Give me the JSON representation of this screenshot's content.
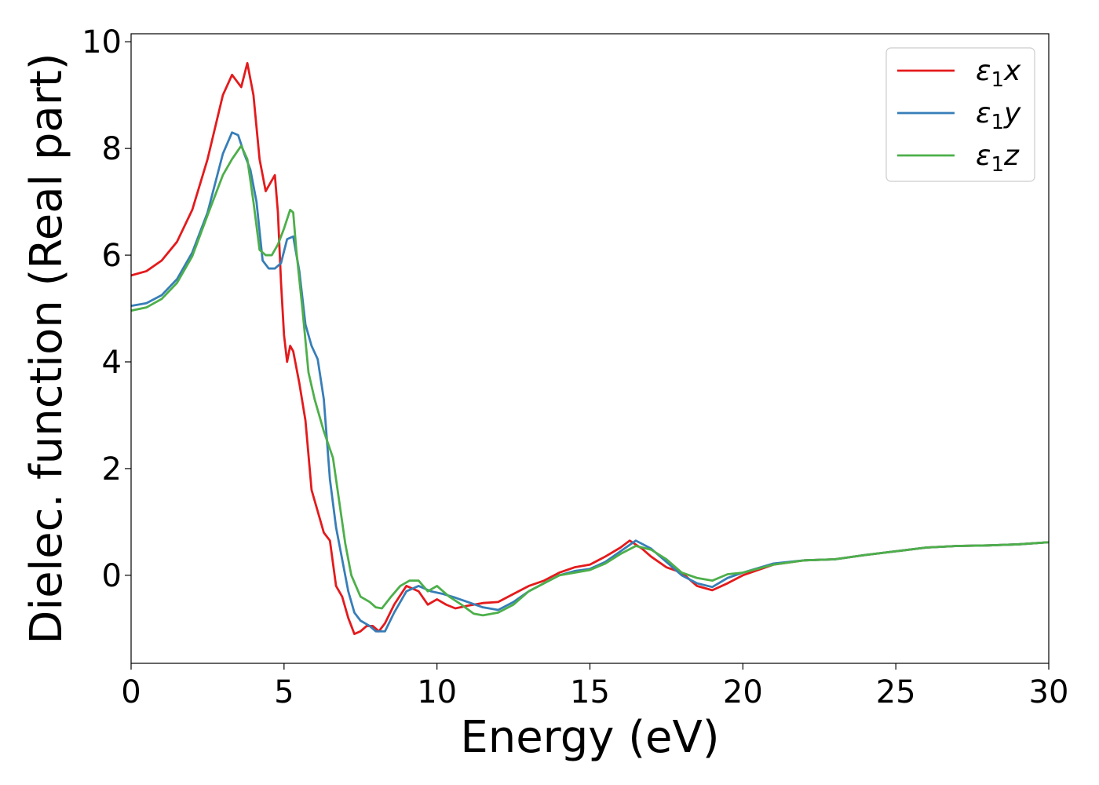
{
  "chart_data": {
    "type": "line",
    "title": "",
    "xlabel": "Energy (eV)",
    "ylabel": "Dielec. function (Real part)",
    "xlim": [
      0,
      30
    ],
    "ylim": [
      -1.65,
      10.15
    ],
    "xticks": [
      0,
      5,
      10,
      15,
      20,
      25,
      30
    ],
    "yticks": [
      0,
      2,
      4,
      6,
      8,
      10
    ],
    "grid": false,
    "legend_position": "top-right",
    "series": [
      {
        "name": "ε₁x",
        "legend_base": "ε",
        "legend_sub": "1",
        "legend_suffix": "x",
        "color": "#e41a1c",
        "x": [
          0,
          0.5,
          1,
          1.5,
          2,
          2.5,
          3,
          3.3,
          3.6,
          3.8,
          4,
          4.2,
          4.4,
          4.5,
          4.7,
          4.8,
          4.9,
          5,
          5.1,
          5.2,
          5.3,
          5.5,
          5.7,
          5.9,
          6.1,
          6.3,
          6.5,
          6.7,
          6.9,
          7.1,
          7.3,
          7.5,
          7.7,
          7.9,
          8.1,
          8.3,
          8.6,
          9,
          9.4,
          9.7,
          10,
          10.3,
          10.6,
          11,
          11.5,
          12,
          12.5,
          13,
          13.5,
          14,
          14.5,
          15,
          15.5,
          16,
          16.3,
          16.7,
          17,
          17.5,
          18,
          18.5,
          19,
          19.5,
          20,
          21,
          22,
          23,
          24,
          25,
          26,
          27,
          28,
          29,
          30
        ],
        "y": [
          5.62,
          5.7,
          5.9,
          6.25,
          6.85,
          7.8,
          9.0,
          9.38,
          9.15,
          9.6,
          9.0,
          7.8,
          7.2,
          7.3,
          7.5,
          6.8,
          5.5,
          4.5,
          4.0,
          4.3,
          4.2,
          3.6,
          2.9,
          1.6,
          1.2,
          0.8,
          0.65,
          -0.2,
          -0.4,
          -0.8,
          -1.1,
          -1.05,
          -0.95,
          -0.95,
          -1.05,
          -0.9,
          -0.55,
          -0.2,
          -0.3,
          -0.55,
          -0.45,
          -0.55,
          -0.62,
          -0.57,
          -0.52,
          -0.5,
          -0.35,
          -0.2,
          -0.1,
          0.05,
          0.15,
          0.2,
          0.35,
          0.52,
          0.65,
          0.5,
          0.35,
          0.15,
          0.05,
          -0.2,
          -0.28,
          -0.15,
          0.0,
          0.2,
          0.28,
          0.3,
          0.38,
          0.45,
          0.52,
          0.55,
          0.56,
          0.58,
          0.62
        ]
      },
      {
        "name": "ε₁y",
        "legend_base": "ε",
        "legend_sub": "1",
        "legend_suffix": "y",
        "color": "#377eb8",
        "x": [
          0,
          0.5,
          1,
          1.5,
          2,
          2.5,
          3,
          3.3,
          3.5,
          3.7,
          3.9,
          4.1,
          4.3,
          4.5,
          4.7,
          4.9,
          5.1,
          5.3,
          5.5,
          5.7,
          5.9,
          6.1,
          6.3,
          6.5,
          6.7,
          6.9,
          7.1,
          7.3,
          7.5,
          7.8,
          8.0,
          8.3,
          8.6,
          9,
          9.4,
          9.8,
          10.2,
          10.6,
          11,
          11.5,
          12,
          12.5,
          13,
          13.5,
          14,
          14.5,
          15,
          15.5,
          16,
          16.5,
          17,
          17.5,
          18,
          18.5,
          19,
          19.5,
          20,
          21,
          22,
          23,
          24,
          25,
          26,
          27,
          28,
          29,
          30
        ],
        "y": [
          5.05,
          5.1,
          5.25,
          5.55,
          6.05,
          6.8,
          7.9,
          8.3,
          8.25,
          7.9,
          7.6,
          7.0,
          5.9,
          5.75,
          5.75,
          5.85,
          6.3,
          6.35,
          5.7,
          4.7,
          4.3,
          4.05,
          3.3,
          1.8,
          0.9,
          0.3,
          -0.3,
          -0.7,
          -0.85,
          -0.95,
          -1.05,
          -1.05,
          -0.7,
          -0.3,
          -0.2,
          -0.3,
          -0.35,
          -0.42,
          -0.5,
          -0.6,
          -0.65,
          -0.5,
          -0.3,
          -0.15,
          0.0,
          0.08,
          0.12,
          0.25,
          0.45,
          0.65,
          0.5,
          0.25,
          0.0,
          -0.15,
          -0.22,
          -0.05,
          0.05,
          0.22,
          0.28,
          0.3,
          0.38,
          0.45,
          0.52,
          0.55,
          0.56,
          0.58,
          0.62
        ]
      },
      {
        "name": "ε₁z",
        "legend_base": "ε",
        "legend_sub": "1",
        "legend_suffix": "z",
        "color": "#4daf4a",
        "x": [
          0,
          0.5,
          1,
          1.5,
          2,
          2.5,
          3,
          3.3,
          3.6,
          3.8,
          4.0,
          4.2,
          4.4,
          4.6,
          4.8,
          5.0,
          5.2,
          5.3,
          5.4,
          5.6,
          5.8,
          6.0,
          6.3,
          6.6,
          6.8,
          7.0,
          7.2,
          7.5,
          7.8,
          8.0,
          8.2,
          8.5,
          8.8,
          9.1,
          9.4,
          9.7,
          10.0,
          10.4,
          10.8,
          11.2,
          11.5,
          12,
          12.5,
          13,
          13.5,
          14,
          14.5,
          15,
          15.5,
          16,
          16.5,
          17,
          17.5,
          18,
          18.5,
          19,
          19.5,
          20,
          21,
          22,
          23,
          24,
          25,
          26,
          27,
          28,
          29,
          30
        ],
        "y": [
          4.96,
          5.02,
          5.18,
          5.48,
          5.98,
          6.75,
          7.5,
          7.8,
          8.05,
          7.8,
          7.0,
          6.1,
          6.0,
          6.0,
          6.2,
          6.5,
          6.85,
          6.8,
          6.1,
          5.0,
          3.8,
          3.3,
          2.7,
          2.2,
          1.4,
          0.6,
          0.0,
          -0.4,
          -0.5,
          -0.6,
          -0.62,
          -0.4,
          -0.2,
          -0.1,
          -0.1,
          -0.3,
          -0.2,
          -0.4,
          -0.55,
          -0.72,
          -0.75,
          -0.7,
          -0.55,
          -0.3,
          -0.15,
          0.0,
          0.05,
          0.1,
          0.22,
          0.4,
          0.55,
          0.48,
          0.3,
          0.05,
          -0.05,
          -0.1,
          0.02,
          0.05,
          0.2,
          0.28,
          0.3,
          0.38,
          0.45,
          0.52,
          0.55,
          0.56,
          0.58,
          0.62
        ]
      }
    ]
  }
}
